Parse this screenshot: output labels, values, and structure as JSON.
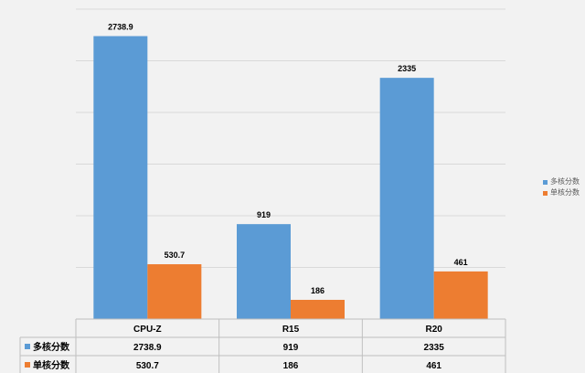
{
  "chart_data": {
    "type": "bar",
    "categories": [
      "CPU-Z",
      "R15",
      "R20"
    ],
    "series": [
      {
        "name": "多核分数",
        "values": [
          2738.9,
          919,
          2335
        ],
        "color": "#5b9bd5"
      },
      {
        "name": "单核分数",
        "values": [
          530.7,
          186,
          461
        ],
        "color": "#ed7d31"
      }
    ],
    "value_labels": [
      [
        "2738.9",
        "919",
        "2335"
      ],
      [
        "530.7",
        "186",
        "461"
      ]
    ],
    "ylim": [
      0,
      3000
    ],
    "grid": true,
    "legend": "right",
    "data_table": true
  }
}
